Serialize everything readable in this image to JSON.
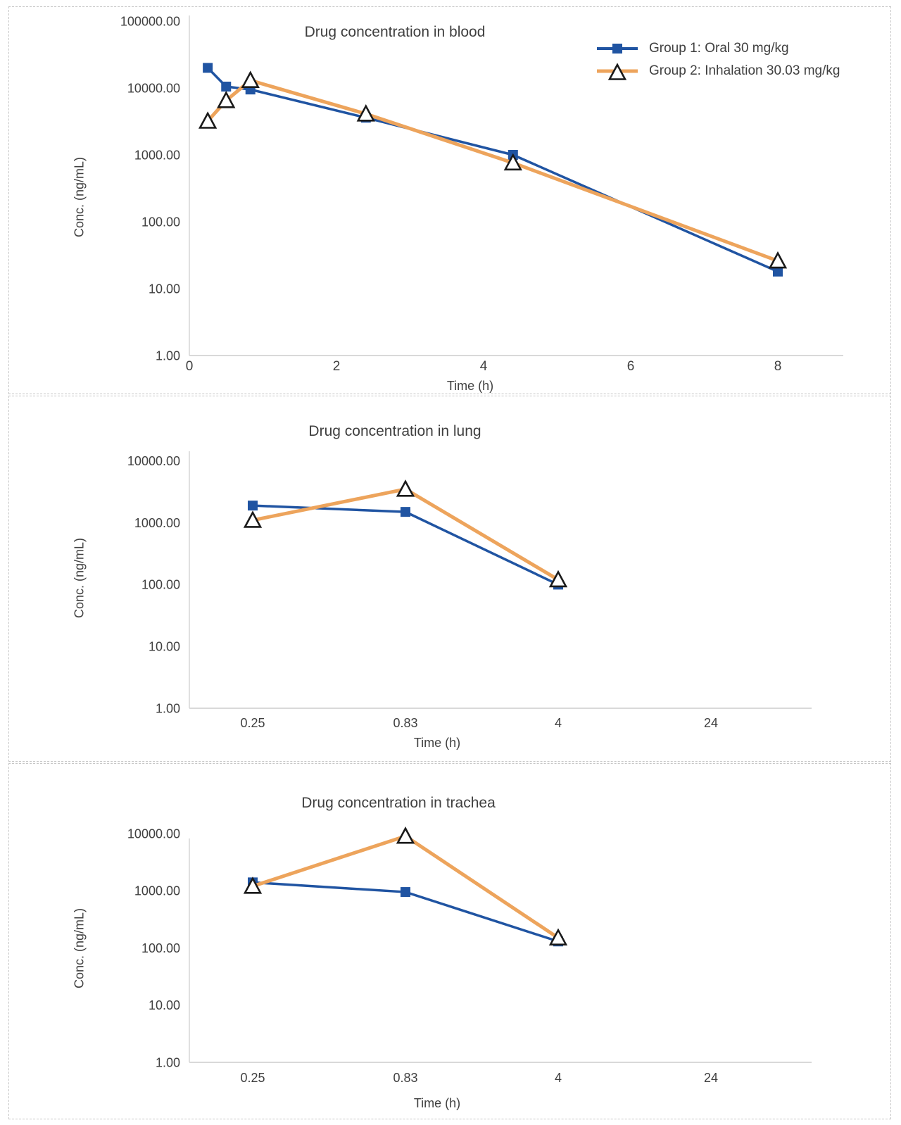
{
  "colors": {
    "oral": "#2054A2",
    "inhalation": "#EDA45C",
    "marker_outline": "#1a1a1a",
    "marker_fill": "#ffffff",
    "axis_line": "#d9d9d9",
    "text": "#404040",
    "panel_border": "#c6c6c6"
  },
  "legend": {
    "items": [
      {
        "label": "Group 1: Oral 30 mg/kg",
        "series": "oral",
        "marker": "square"
      },
      {
        "label": "Group 2: Inhalation 30.03 mg/kg",
        "series": "inhalation",
        "marker": "triangle"
      }
    ]
  },
  "chart_data": [
    {
      "id": "blood",
      "type": "line",
      "title": "Drug concentration in blood",
      "xlabel": "Time (h)",
      "ylabel": "Conc. (ng/mL)",
      "x_axis": "linear",
      "xlim": [
        0,
        8.6
      ],
      "x_ticks": [
        0,
        2,
        4,
        6,
        8
      ],
      "y_scale": "log",
      "ylim": [
        1,
        100000
      ],
      "y_ticks": [
        "100000.00",
        "10000.00",
        "1000.00",
        "100.00",
        "10.00",
        "1.00"
      ],
      "grid": false,
      "legend_position": "top-right",
      "series": [
        {
          "name": "Group 1: Oral 30 mg/kg",
          "color_key": "oral",
          "marker": "square",
          "x": [
            0.25,
            0.5,
            0.83,
            2.4,
            4.4,
            8
          ],
          "y": [
            20000,
            10500,
            9500,
            3600,
            1000,
            18
          ]
        },
        {
          "name": "Group 2: Inhalation 30.03 mg/kg",
          "color_key": "inhalation",
          "marker": "triangle",
          "x": [
            0.25,
            0.5,
            0.83,
            2.4,
            4.4,
            8
          ],
          "y": [
            3200,
            6500,
            13000,
            4100,
            760,
            26
          ]
        }
      ]
    },
    {
      "id": "lung",
      "type": "line",
      "title": "Drug concentration in lung",
      "xlabel": "Time (h)",
      "ylabel": "Conc. (ng/mL)",
      "x_axis": "categorical",
      "categories": [
        "0.25",
        "0.83",
        "4",
        "24"
      ],
      "y_scale": "log",
      "ylim": [
        1,
        10000
      ],
      "y_ticks": [
        "10000.00",
        "1000.00",
        "100.00",
        "10.00",
        "1.00"
      ],
      "grid": false,
      "series": [
        {
          "name": "Group 1: Oral 30 mg/kg",
          "color_key": "oral",
          "marker": "square",
          "y": [
            1900,
            1500,
            100
          ]
        },
        {
          "name": "Group 2: Inhalation 30.03 mg/kg",
          "color_key": "inhalation",
          "marker": "triangle",
          "y": [
            1100,
            3500,
            120
          ]
        }
      ]
    },
    {
      "id": "trachea",
      "type": "line",
      "title": "Drug concentration in trachea",
      "xlabel": "Time (h)",
      "ylabel": "Conc. (ng/mL)",
      "x_axis": "categorical",
      "categories": [
        "0.25",
        "0.83",
        "4",
        "24"
      ],
      "y_scale": "log",
      "ylim": [
        1,
        10000
      ],
      "y_ticks": [
        "10000.00",
        "1000.00",
        "100.00",
        "10.00",
        "1.00"
      ],
      "grid": false,
      "series": [
        {
          "name": "Group 1: Oral 30 mg/kg",
          "color_key": "oral",
          "marker": "square",
          "y": [
            1400,
            950,
            130
          ]
        },
        {
          "name": "Group 2: Inhalation 30.03 mg/kg",
          "color_key": "inhalation",
          "marker": "triangle",
          "y": [
            1200,
            9000,
            150
          ]
        }
      ]
    }
  ]
}
